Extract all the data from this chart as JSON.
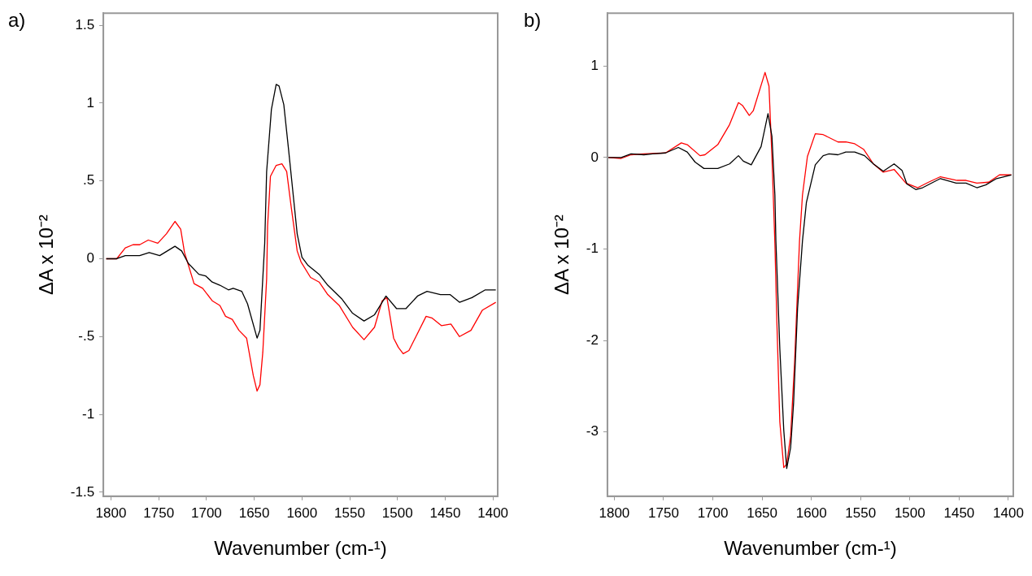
{
  "chart_data": [
    {
      "type": "line",
      "title": "a)",
      "xlabel": "Wavenumber (cm-¹)",
      "ylabel": "ΔA x 10⁻²",
      "xlim": [
        1808,
        1395
      ],
      "xticks": [
        1800,
        1750,
        1700,
        1650,
        1600,
        1550,
        1500,
        1450,
        1400
      ],
      "ylim": [
        -1.526,
        1.578
      ],
      "yticks": [
        {
          "value": 1.5,
          "label": "1.5"
        },
        1,
        {
          "value": 0.5,
          "label": ".5"
        },
        0,
        {
          "value": -0.5,
          "label": "-.5"
        },
        -1,
        {
          "value": -1.5,
          "label": "-1.5"
        }
      ],
      "series": [
        {
          "color": "#000000",
          "x": [
            1805,
            1794,
            1785,
            1770,
            1760,
            1749,
            1733,
            1726,
            1719,
            1708,
            1701,
            1694,
            1686,
            1677,
            1672,
            1663,
            1657,
            1647,
            1644,
            1639,
            1637,
            1632,
            1627,
            1624,
            1619,
            1614,
            1605,
            1600,
            1594,
            1582,
            1573,
            1558,
            1547,
            1535,
            1524,
            1512,
            1501,
            1491,
            1479,
            1469,
            1455,
            1445,
            1435,
            1422,
            1408,
            1397
          ],
          "values": [
            0,
            0,
            0.02,
            0.02,
            0.04,
            0.02,
            0.08,
            0.05,
            -0.03,
            -0.1,
            -0.11,
            -0.15,
            -0.17,
            -0.2,
            -0.19,
            -0.21,
            -0.29,
            -0.51,
            -0.46,
            0.1,
            0.56,
            0.96,
            1.12,
            1.11,
            0.99,
            0.7,
            0.16,
            0.01,
            -0.04,
            -0.1,
            -0.17,
            -0.26,
            -0.35,
            -0.4,
            -0.36,
            -0.24,
            -0.32,
            -0.32,
            -0.24,
            -0.21,
            -0.23,
            -0.23,
            -0.28,
            -0.25,
            -0.2,
            -0.2
          ]
        },
        {
          "color": "#ff0000",
          "x": [
            1805,
            1794,
            1785,
            1777,
            1770,
            1761,
            1751,
            1742,
            1733,
            1727,
            1723,
            1720,
            1713,
            1704,
            1694,
            1686,
            1680,
            1673,
            1666,
            1658,
            1651,
            1647,
            1644,
            1641,
            1637,
            1636,
            1633,
            1627,
            1621,
            1616,
            1611,
            1605,
            1601,
            1591,
            1582,
            1573,
            1561,
            1547,
            1535,
            1524,
            1516,
            1511,
            1504,
            1499,
            1494,
            1488,
            1479,
            1470,
            1464,
            1454,
            1444,
            1435,
            1423,
            1411,
            1397
          ],
          "values": [
            0,
            0,
            0.07,
            0.09,
            0.09,
            0.12,
            0.1,
            0.16,
            0.24,
            0.19,
            0.04,
            -0.02,
            -0.16,
            -0.19,
            -0.27,
            -0.3,
            -0.37,
            -0.39,
            -0.46,
            -0.51,
            -0.75,
            -0.85,
            -0.81,
            -0.6,
            -0.13,
            0.21,
            0.53,
            0.6,
            0.61,
            0.56,
            0.32,
            0.05,
            -0.02,
            -0.12,
            -0.15,
            -0.23,
            -0.3,
            -0.44,
            -0.52,
            -0.44,
            -0.27,
            -0.25,
            -0.51,
            -0.57,
            -0.61,
            -0.59,
            -0.48,
            -0.37,
            -0.38,
            -0.43,
            -0.42,
            -0.5,
            -0.46,
            -0.33,
            -0.28
          ]
        }
      ]
    },
    {
      "type": "line",
      "title": "b)",
      "xlabel": "Wavenumber (cm-¹)",
      "ylabel": "ΔA x 10⁻²",
      "xlim": [
        1807,
        1395
      ],
      "xticks": [
        1800,
        1750,
        1700,
        1650,
        1600,
        1550,
        1500,
        1450,
        1400
      ],
      "ylim": [
        -3.703,
        1.578
      ],
      "yticks": [
        1,
        0,
        -1,
        -2,
        -3
      ],
      "series": [
        {
          "color": "#000000",
          "x": [
            1806,
            1793,
            1783,
            1770,
            1761,
            1748,
            1735,
            1726,
            1718,
            1709,
            1695,
            1683,
            1674,
            1669,
            1661,
            1651,
            1644,
            1640,
            1637,
            1636,
            1632,
            1628,
            1625,
            1621,
            1618,
            1614,
            1609,
            1605,
            1596,
            1588,
            1582,
            1573,
            1565,
            1556,
            1546,
            1537,
            1527,
            1516,
            1508,
            1503,
            1494,
            1487,
            1469,
            1453,
            1443,
            1432,
            1423,
            1412,
            1397
          ],
          "values": [
            0,
            0,
            0.04,
            0.03,
            0.04,
            0.05,
            0.11,
            0.06,
            -0.05,
            -0.12,
            -0.12,
            -0.07,
            0.02,
            -0.04,
            -0.08,
            0.12,
            0.48,
            0.23,
            -0.41,
            -0.91,
            -2.09,
            -2.98,
            -3.4,
            -3.17,
            -2.68,
            -1.65,
            -0.91,
            -0.49,
            -0.08,
            0.02,
            0.04,
            0.03,
            0.06,
            0.06,
            0.02,
            -0.07,
            -0.15,
            -0.07,
            -0.14,
            -0.29,
            -0.35,
            -0.33,
            -0.23,
            -0.28,
            -0.28,
            -0.33,
            -0.3,
            -0.23,
            -0.19
          ]
        },
        {
          "color": "#ff0000",
          "x": [
            1806,
            1793,
            1783,
            1770,
            1748,
            1732,
            1726,
            1713,
            1708,
            1695,
            1683,
            1674,
            1670,
            1663,
            1659,
            1647,
            1643,
            1640,
            1637,
            1635,
            1632,
            1628,
            1625,
            1621,
            1617,
            1612,
            1609,
            1604,
            1596,
            1588,
            1573,
            1565,
            1556,
            1547,
            1537,
            1527,
            1516,
            1504,
            1492,
            1481,
            1469,
            1452,
            1443,
            1432,
            1420,
            1409,
            1397
          ],
          "values": [
            0,
            -0.01,
            0.03,
            0.04,
            0.05,
            0.16,
            0.14,
            0.02,
            0.03,
            0.14,
            0.36,
            0.6,
            0.57,
            0.46,
            0.51,
            0.93,
            0.78,
            0.01,
            -0.94,
            -1.8,
            -2.89,
            -3.39,
            -3.35,
            -3.04,
            -2.24,
            -0.91,
            -0.41,
            0.01,
            0.26,
            0.25,
            0.17,
            0.17,
            0.15,
            0.09,
            -0.07,
            -0.16,
            -0.13,
            -0.28,
            -0.33,
            -0.27,
            -0.21,
            -0.25,
            -0.25,
            -0.28,
            -0.27,
            -0.19,
            -0.19
          ]
        }
      ]
    }
  ]
}
